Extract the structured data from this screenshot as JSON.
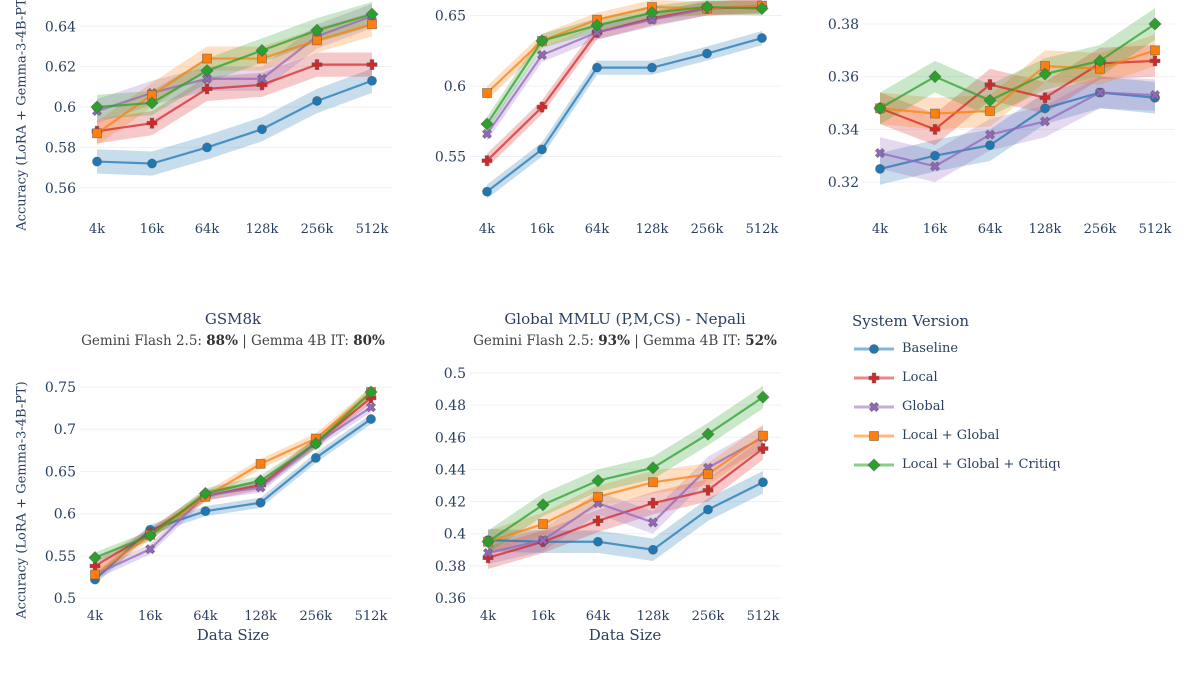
{
  "chart_data": {
    "type": "line",
    "categories": [
      "4k",
      "16k",
      "64k",
      "128k",
      "256k",
      "512k"
    ],
    "legend": {
      "title": "System Version",
      "placement": "right",
      "entries": [
        {
          "name": "Baseline",
          "color": "#1f77b4",
          "marker": "circle"
        },
        {
          "name": "Local",
          "color": "#d62728",
          "marker": "cross"
        },
        {
          "name": "Global",
          "color": "#9467bd",
          "marker": "x"
        },
        {
          "name": "Local + Global",
          "color": "#ff7f0e",
          "marker": "square"
        },
        {
          "name": "Local + Global + Critique",
          "color": "#2ca02c",
          "marker": "diamond"
        }
      ]
    },
    "grid": true,
    "panels": [
      {
        "ylabel": "Accuracy (LoRA + Gemma-3-4B-PT)",
        "xlabel": "",
        "ylim": [
          0.549,
          0.653
        ],
        "yticks": [
          0.56,
          0.58,
          0.6,
          0.62,
          0.64
        ],
        "band": 0.006,
        "series": [
          {
            "name": "Baseline",
            "values": [
              0.573,
              0.572,
              0.58,
              0.589,
              0.603,
              0.613
            ]
          },
          {
            "name": "Local",
            "values": [
              0.588,
              0.592,
              0.609,
              0.611,
              0.621,
              0.621
            ]
          },
          {
            "name": "Global",
            "values": [
              0.598,
              0.607,
              0.614,
              0.614,
              0.635,
              0.645
            ]
          },
          {
            "name": "Local + Global",
            "values": [
              0.587,
              0.606,
              0.624,
              0.624,
              0.633,
              0.641
            ]
          },
          {
            "name": "Local + Global + Critique",
            "values": [
              0.6,
              0.602,
              0.618,
              0.628,
              0.638,
              0.646
            ]
          }
        ]
      },
      {
        "ylabel": "",
        "xlabel": "",
        "ylim": [
          0.512,
          0.661
        ],
        "yticks": [
          0.55,
          0.6,
          0.65
        ],
        "band": 0.005,
        "series": [
          {
            "name": "Baseline",
            "values": [
              0.525,
              0.555,
              0.613,
              0.613,
              0.623,
              0.634
            ]
          },
          {
            "name": "Local",
            "values": [
              0.547,
              0.585,
              0.638,
              0.648,
              0.655,
              0.656
            ]
          },
          {
            "name": "Global",
            "values": [
              0.566,
              0.622,
              0.638,
              0.647,
              0.655,
              0.657
            ]
          },
          {
            "name": "Local + Global",
            "values": [
              0.595,
              0.632,
              0.647,
              0.656,
              0.655,
              0.657
            ]
          },
          {
            "name": "Local + Global + Critique",
            "values": [
              0.573,
              0.632,
              0.643,
              0.652,
              0.656,
              0.655
            ]
          }
        ]
      },
      {
        "ylabel": "",
        "xlabel": "",
        "ylim": [
          0.3094,
          0.3891
        ],
        "yticks": [
          0.32,
          0.34,
          0.36,
          0.38
        ],
        "band": 0.006,
        "series": [
          {
            "name": "Baseline",
            "values": [
              0.325,
              0.33,
              0.334,
              0.348,
              0.354,
              0.352
            ]
          },
          {
            "name": "Local",
            "values": [
              0.348,
              0.34,
              0.357,
              0.352,
              0.365,
              0.366
            ]
          },
          {
            "name": "Global",
            "values": [
              0.331,
              0.326,
              0.338,
              0.343,
              0.354,
              0.353
            ]
          },
          {
            "name": "Local + Global",
            "values": [
              0.348,
              0.346,
              0.347,
              0.364,
              0.363,
              0.37
            ]
          },
          {
            "name": "Local + Global + Critique",
            "values": [
              0.348,
              0.36,
              0.351,
              0.361,
              0.366,
              0.38
            ]
          }
        ]
      },
      {
        "title": "GSM8k",
        "subtitle": {
          "a": "Gemini Flash 2.5: ",
          "a_val": "88%",
          "b": " | Gemma 4B IT: ",
          "b_val": "80%"
        },
        "ylabel": "Accuracy (LoRA + Gemma-3-4B-PT)",
        "xlabel": "Data Size",
        "ylim": [
          0.486,
          0.776
        ],
        "yticks": [
          0.5,
          0.55,
          0.6,
          0.65,
          0.7,
          0.75
        ],
        "yticklabels": [
          "0.5",
          "0.55",
          "0.6",
          "0.65",
          "0.7",
          "0.75"
        ],
        "band": 0.006,
        "series": [
          {
            "name": "Baseline",
            "values": [
              0.522,
              0.581,
              0.603,
              0.613,
              0.666,
              0.712
            ]
          },
          {
            "name": "Local",
            "values": [
              0.538,
              0.577,
              0.621,
              0.634,
              0.684,
              0.737
            ]
          },
          {
            "name": "Global",
            "values": [
              0.528,
              0.558,
              0.622,
              0.631,
              0.683,
              0.726
            ]
          },
          {
            "name": "Local + Global",
            "values": [
              0.528,
              0.575,
              0.62,
              0.659,
              0.689,
              0.744
            ]
          },
          {
            "name": "Local + Global + Critique",
            "values": [
              0.548,
              0.574,
              0.624,
              0.639,
              0.683,
              0.744
            ]
          }
        ]
      },
      {
        "title": "Global MMLU (P,M,CS) - Nepali",
        "subtitle": {
          "a": "Gemini Flash 2.5: ",
          "a_val": "93%",
          "b": " | Gemma 4B IT: ",
          "b_val": "52%"
        },
        "ylabel": "",
        "xlabel": "Data Size",
        "ylim": [
          0.3525,
          0.505
        ],
        "yticks": [
          0.36,
          0.38,
          0.4,
          0.42,
          0.44,
          0.46,
          0.48,
          0.5
        ],
        "band": 0.007,
        "series": [
          {
            "name": "Baseline",
            "values": [
              0.396,
              0.395,
              0.395,
              0.39,
              0.415,
              0.432
            ]
          },
          {
            "name": "Local",
            "values": [
              0.385,
              0.395,
              0.408,
              0.419,
              0.427,
              0.453
            ]
          },
          {
            "name": "Global",
            "values": [
              0.388,
              0.396,
              0.419,
              0.407,
              0.441,
              0.46
            ]
          },
          {
            "name": "Local + Global",
            "values": [
              0.395,
              0.406,
              0.423,
              0.432,
              0.437,
              0.461
            ]
          },
          {
            "name": "Local + Global + Critique",
            "values": [
              0.395,
              0.418,
              0.433,
              0.441,
              0.462,
              0.485
            ]
          }
        ]
      }
    ]
  }
}
